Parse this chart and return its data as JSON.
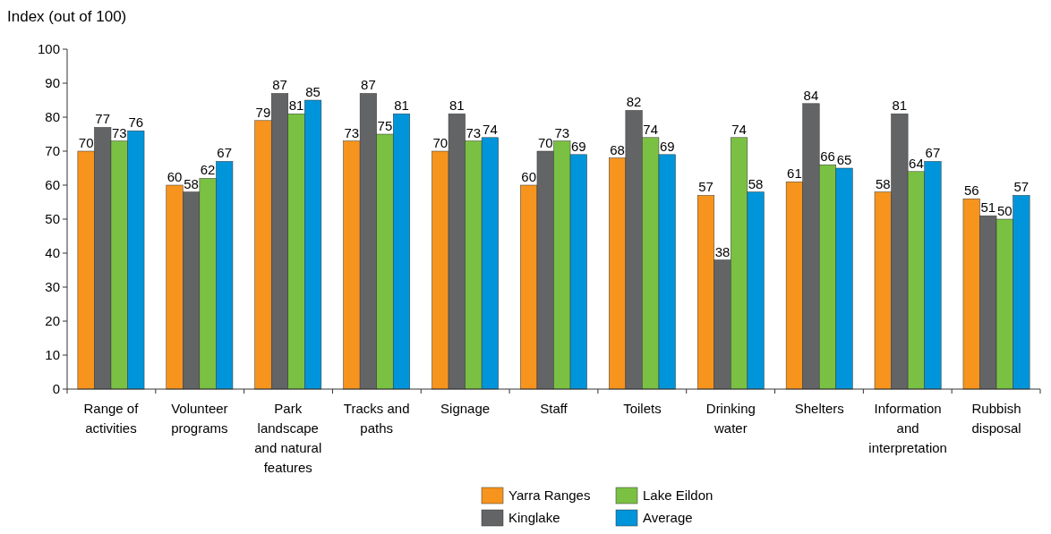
{
  "chart_data": {
    "type": "bar",
    "ylabel": "Index (out of 100)",
    "categories": [
      "Range of activities",
      "Volunteer programs",
      "Park landscape and natural features",
      "Tracks and paths",
      "Signage",
      "Staff",
      "Toilets",
      "Drinking water",
      "Shelters",
      "Information and interpretation",
      "Rubbish disposal"
    ],
    "series": [
      {
        "name": "Yarra Ranges",
        "color": "#f7941d",
        "values": [
          70,
          60,
          79,
          73,
          70,
          60,
          68,
          57,
          61,
          58,
          56
        ]
      },
      {
        "name": "Kinglake",
        "color": "#636466",
        "values": [
          77,
          58,
          87,
          87,
          81,
          70,
          82,
          38,
          84,
          81,
          51
        ]
      },
      {
        "name": "Lake Eildon",
        "color": "#7ac143",
        "values": [
          73,
          62,
          81,
          75,
          73,
          73,
          74,
          74,
          66,
          64,
          50
        ]
      },
      {
        "name": "Average",
        "color": "#0095da",
        "values": [
          76,
          67,
          85,
          81,
          74,
          69,
          69,
          58,
          65,
          67,
          57
        ]
      }
    ],
    "ylim": [
      0,
      100
    ],
    "yticks": [
      0,
      10,
      20,
      30,
      40,
      50,
      60,
      70,
      80,
      90,
      100
    ],
    "data_labels": true,
    "legend": "bottom",
    "grid": false
  }
}
